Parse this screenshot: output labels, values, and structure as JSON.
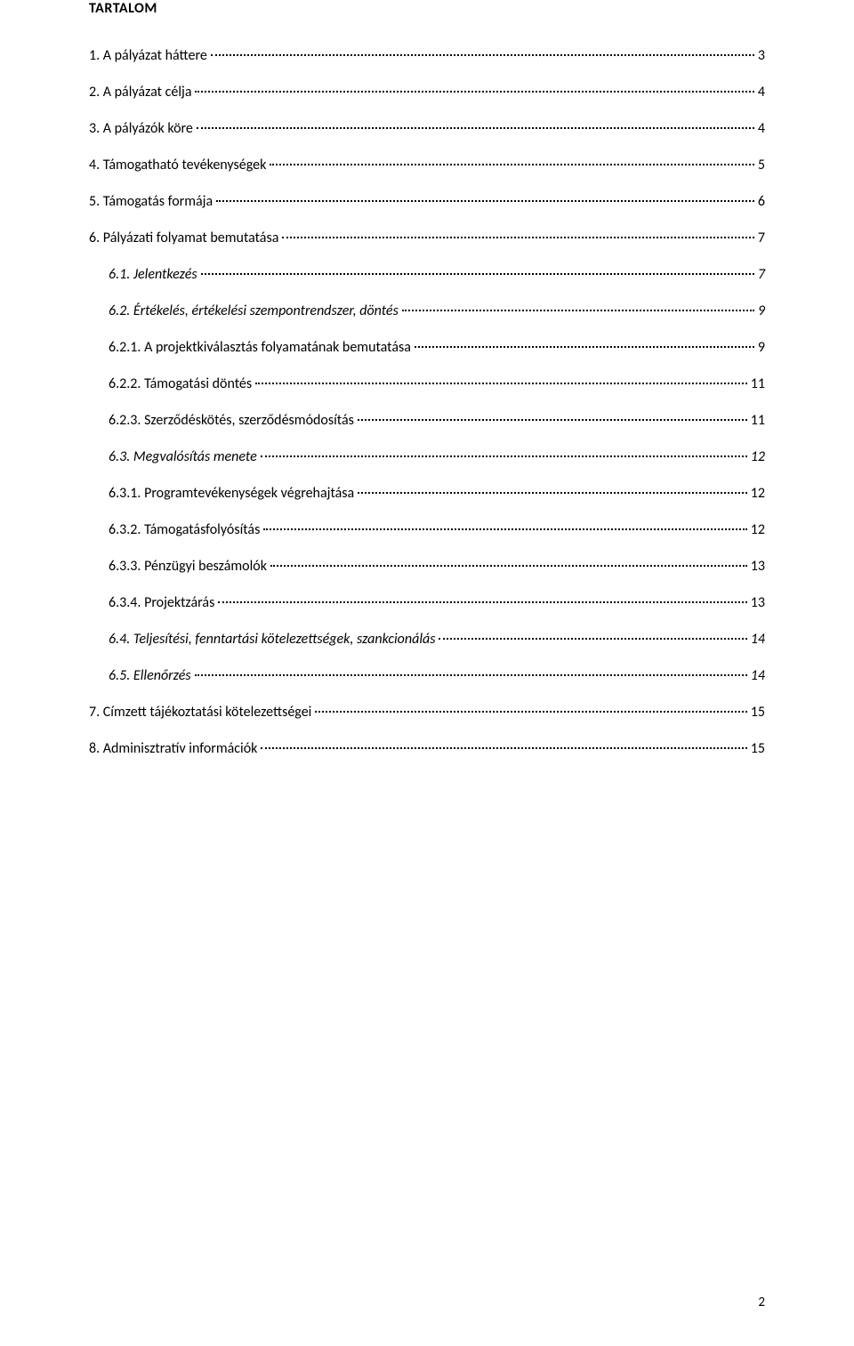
{
  "heading": "TARTALOM",
  "page_number": "2",
  "entries": [
    {
      "label": "1. A pályázat háttere",
      "page": "3",
      "indent": 0,
      "italic": false
    },
    {
      "label": "2. A pályázat célja",
      "page": "4",
      "indent": 0,
      "italic": false
    },
    {
      "label": "3. A pályázók köre",
      "page": "4",
      "indent": 0,
      "italic": false
    },
    {
      "label": "4. Támogatható tevékenységek",
      "page": "5",
      "indent": 0,
      "italic": false
    },
    {
      "label": "5. Támogatás formája",
      "page": "6",
      "indent": 0,
      "italic": false
    },
    {
      "label": "6. Pályázati folyamat bemutatása",
      "page": "7",
      "indent": 0,
      "italic": false
    },
    {
      "label": "6.1. Jelentkezés",
      "page": "7",
      "indent": 1,
      "italic": true
    },
    {
      "label": "6.2. Értékelés, értékelési szempontrendszer, döntés",
      "page": "9",
      "indent": 1,
      "italic": true
    },
    {
      "label": "6.2.1. A projektkiválasztás folyamatának bemutatása",
      "page": "9",
      "indent": 2,
      "italic": false
    },
    {
      "label": "6.2.2. Támogatási döntés",
      "page": "11",
      "indent": 2,
      "italic": false
    },
    {
      "label": "6.2.3. Szerződéskötés, szerződésmódosítás",
      "page": "11",
      "indent": 2,
      "italic": false
    },
    {
      "label": "6.3. Megvalósítás menete",
      "page": "12",
      "indent": 1,
      "italic": true
    },
    {
      "label": "6.3.1. Programtevékenységek végrehajtása",
      "page": "12",
      "indent": 2,
      "italic": false
    },
    {
      "label": "6.3.2. Támogatásfolyósítás",
      "page": "12",
      "indent": 2,
      "italic": false
    },
    {
      "label": "6.3.3. Pénzügyi beszámolók",
      "page": "13",
      "indent": 2,
      "italic": false
    },
    {
      "label": "6.3.4. Projektzárás",
      "page": "13",
      "indent": 2,
      "italic": false
    },
    {
      "label": "6.4. Teljesítési, fenntartási kötelezettségek, szankcionálás",
      "page": "14",
      "indent": 1,
      "italic": true
    },
    {
      "label": "6.5. Ellenőrzés",
      "page": "14",
      "indent": 1,
      "italic": true
    },
    {
      "label": "7. Címzett tájékoztatási kötelezettségei",
      "page": "15",
      "indent": 0,
      "italic": false
    },
    {
      "label": "8. Adminisztratív információk",
      "page": "15",
      "indent": 0,
      "italic": false
    }
  ]
}
